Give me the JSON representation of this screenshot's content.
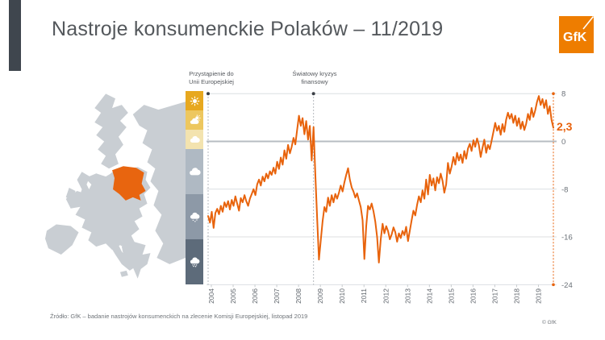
{
  "header": {
    "title": "Nastroje konsumenckie Polaków – 11/2019"
  },
  "logo": {
    "text": "GfK",
    "color": "#EE7D00"
  },
  "map": {
    "land_color": "#C9CED3",
    "poland_color": "#E8650F"
  },
  "weather_legend": {
    "items": [
      {
        "name": "sunny",
        "color": "#E7A81F"
      },
      {
        "name": "partly-sunny",
        "color": "#EDC75F"
      },
      {
        "name": "mostly-cloudy",
        "color": "#F3E3AF"
      },
      {
        "name": "cloudy",
        "color": "#AFB9C3"
      },
      {
        "name": "rain",
        "color": "#8D99A7"
      },
      {
        "name": "heavy-rain",
        "color": "#5D6B7A"
      }
    ]
  },
  "chart_data": {
    "type": "line",
    "title": "Nastroje konsumenckie Polaków – 11/2019",
    "x_start": "2004-01",
    "x_end": "2019-11",
    "year_ticks": [
      "2004",
      "2005",
      "2006",
      "2007",
      "2008",
      "2009",
      "2010",
      "2011",
      "2012",
      "2013",
      "2014",
      "2015",
      "2016",
      "2017",
      "2018",
      "2019"
    ],
    "y_tick_labels": [
      "8",
      "0",
      "-8",
      "-16",
      "-24"
    ],
    "y_ticks": [
      8,
      0,
      -8,
      -16,
      -24
    ],
    "ylim": [
      -24,
      8
    ],
    "grid": true,
    "legend_position": "none",
    "line_color": "#E8630C",
    "current_value": 2.3,
    "current_value_label": "2,3",
    "annotations": [
      {
        "line1": "Przystąpienie do",
        "line2": "Unii Europejskiej",
        "month_index": 0
      },
      {
        "line1": "Światowy kryzys",
        "line2": "finansowy",
        "month_index": 58
      }
    ],
    "values": [
      -12.5,
      -13.6,
      -11.8,
      -14.5,
      -12.0,
      -11.3,
      -12.2,
      -10.8,
      -11.8,
      -10.2,
      -11.0,
      -10.0,
      -11.4,
      -9.8,
      -10.8,
      -9.2,
      -10.4,
      -11.6,
      -9.5,
      -10.2,
      -9.0,
      -10.0,
      -10.8,
      -9.6,
      -8.8,
      -8.0,
      -9.0,
      -7.2,
      -6.4,
      -7.4,
      -5.9,
      -6.7,
      -5.4,
      -6.2,
      -5.0,
      -5.6,
      -4.4,
      -5.4,
      -3.4,
      -4.6,
      -2.7,
      -3.9,
      -1.5,
      -2.9,
      -0.6,
      -2.0,
      -0.9,
      0.6,
      -0.5,
      2.0,
      4.3,
      2.6,
      3.9,
      1.2,
      3.4,
      0.3,
      2.6,
      -3.2,
      2.4,
      -5.5,
      -13.0,
      -19.8,
      -16.5,
      -13.4,
      -11.0,
      -11.8,
      -9.4,
      -10.8,
      -9.0,
      -10.2,
      -8.8,
      -9.6,
      -8.6,
      -7.4,
      -8.4,
      -6.9,
      -5.6,
      -4.5,
      -6.4,
      -7.7,
      -8.4,
      -9.4,
      -8.7,
      -9.9,
      -11.0,
      -13.2,
      -19.7,
      -14.2,
      -10.8,
      -11.4,
      -10.4,
      -11.7,
      -13.4,
      -16.0,
      -20.3,
      -16.4,
      -13.8,
      -15.4,
      -14.2,
      -15.0,
      -16.4,
      -15.6,
      -14.4,
      -15.2,
      -16.8,
      -15.4,
      -16.2,
      -15.0,
      -15.7,
      -14.3,
      -16.7,
      -15.0,
      -13.2,
      -11.6,
      -12.4,
      -10.6,
      -9.2,
      -10.2,
      -8.2,
      -9.6,
      -6.4,
      -8.9,
      -5.6,
      -7.4,
      -6.2,
      -8.2,
      -6.0,
      -7.0,
      -5.4,
      -6.6,
      -8.6,
      -7.2,
      -3.6,
      -5.4,
      -4.2,
      -2.6,
      -3.9,
      -1.9,
      -3.2,
      -2.2,
      -3.6,
      -1.6,
      -2.9,
      -1.2,
      -0.4,
      -1.6,
      0.2,
      -0.9,
      0.5,
      -0.6,
      -2.6,
      -1.1,
      0.3,
      -1.9,
      -0.6,
      -1.3,
      0.1,
      1.6,
      3.1,
      1.8,
      2.6,
      1.1,
      2.9,
      1.6,
      3.6,
      4.8,
      3.8,
      4.6,
      3.1,
      4.3,
      2.6,
      3.9,
      2.1,
      3.3,
      1.9,
      2.9,
      4.6,
      3.6,
      5.6,
      4.1,
      5.2,
      6.6,
      7.6,
      6.1,
      7.1,
      5.6,
      6.9,
      4.6,
      5.9,
      3.6,
      2.3
    ]
  },
  "footer": {
    "source": "Źródło: GfK – badanie nastrojów konsumenckich na zlecenie Komisji Europejskiej, listopad 2019",
    "copyright": "© GfK"
  }
}
